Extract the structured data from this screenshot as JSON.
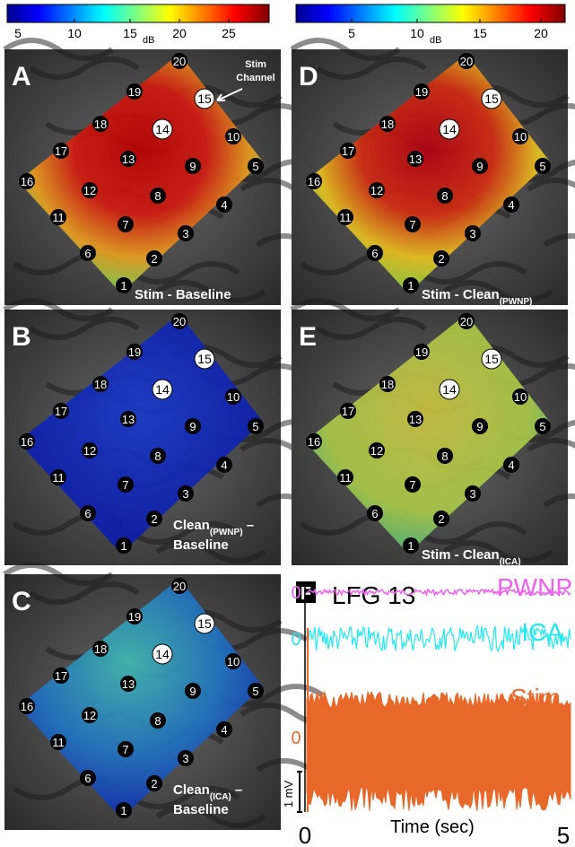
{
  "colorbars": [
    {
      "ticks": [
        "5",
        "10",
        "15",
        "20",
        "25"
      ],
      "unit": "dB"
    },
    {
      "ticks": [
        "5",
        "10",
        "15",
        "20"
      ],
      "unit": "dB"
    }
  ],
  "electrodes": [
    "1",
    "2",
    "3",
    "4",
    "5",
    "6",
    "7",
    "8",
    "9",
    "10",
    "11",
    "12",
    "13",
    "14",
    "15",
    "16",
    "17",
    "18",
    "19",
    "20"
  ],
  "panels": [
    {
      "letter": "A",
      "caption": [
        [
          "Stim - Baseline"
        ]
      ],
      "annotation": [
        "Stim",
        "Channel"
      ]
    },
    {
      "letter": "B",
      "caption": [
        [
          "Clean",
          "(PWNP)",
          " –"
        ],
        [
          "Baseline"
        ]
      ]
    },
    {
      "letter": "C",
      "caption": [
        [
          "Clean",
          "(ICA)",
          " –"
        ],
        [
          "Baseline"
        ]
      ]
    },
    {
      "letter": "D",
      "caption": [
        [
          "Stim - Clean",
          "(PWNP)"
        ]
      ]
    },
    {
      "letter": "E",
      "caption": [
        [
          "Stim - Clean",
          "(ICA)"
        ]
      ]
    }
  ],
  "trace_panel": {
    "letter": "F",
    "channel": "LFG 13",
    "traces": [
      "PWNP",
      "ICA",
      "Stim"
    ],
    "zeros": [
      "0",
      "0",
      "0"
    ],
    "scale": "1 mV",
    "xlabel": "Time (sec)",
    "xticks": [
      "0",
      "5"
    ]
  }
}
